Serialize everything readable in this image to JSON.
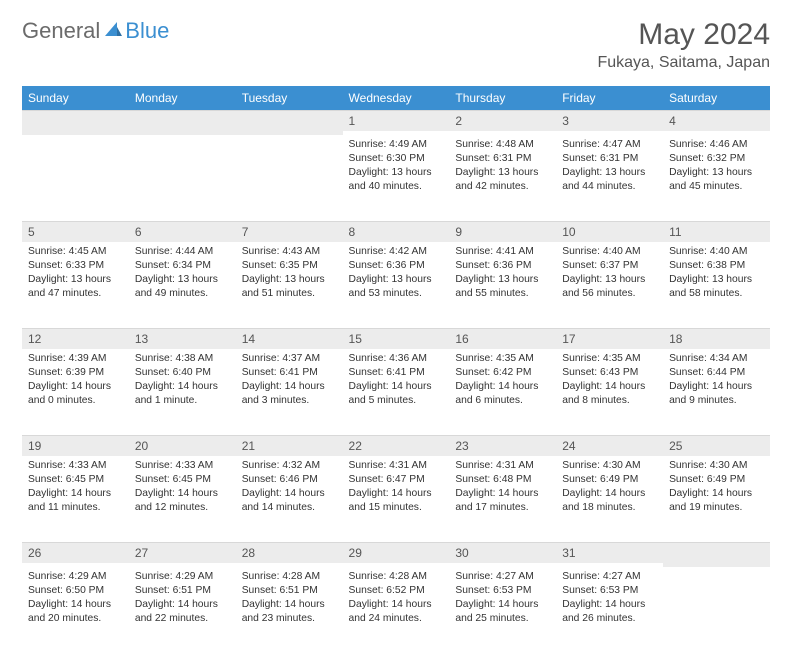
{
  "logo": {
    "text_general": "General",
    "text_blue": "Blue"
  },
  "title": "May 2024",
  "location": "Fukaya, Saitama, Japan",
  "header_bg": "#3b8fd1",
  "daynum_bg": "#ececec",
  "weekdays": [
    "Sunday",
    "Monday",
    "Tuesday",
    "Wednesday",
    "Thursday",
    "Friday",
    "Saturday"
  ],
  "weeks": [
    [
      null,
      null,
      null,
      {
        "n": "1",
        "sunrise": "4:49 AM",
        "sunset": "6:30 PM",
        "daylight": "13 hours and 40 minutes."
      },
      {
        "n": "2",
        "sunrise": "4:48 AM",
        "sunset": "6:31 PM",
        "daylight": "13 hours and 42 minutes."
      },
      {
        "n": "3",
        "sunrise": "4:47 AM",
        "sunset": "6:31 PM",
        "daylight": "13 hours and 44 minutes."
      },
      {
        "n": "4",
        "sunrise": "4:46 AM",
        "sunset": "6:32 PM",
        "daylight": "13 hours and 45 minutes."
      }
    ],
    [
      {
        "n": "5",
        "sunrise": "4:45 AM",
        "sunset": "6:33 PM",
        "daylight": "13 hours and 47 minutes."
      },
      {
        "n": "6",
        "sunrise": "4:44 AM",
        "sunset": "6:34 PM",
        "daylight": "13 hours and 49 minutes."
      },
      {
        "n": "7",
        "sunrise": "4:43 AM",
        "sunset": "6:35 PM",
        "daylight": "13 hours and 51 minutes."
      },
      {
        "n": "8",
        "sunrise": "4:42 AM",
        "sunset": "6:36 PM",
        "daylight": "13 hours and 53 minutes."
      },
      {
        "n": "9",
        "sunrise": "4:41 AM",
        "sunset": "6:36 PM",
        "daylight": "13 hours and 55 minutes."
      },
      {
        "n": "10",
        "sunrise": "4:40 AM",
        "sunset": "6:37 PM",
        "daylight": "13 hours and 56 minutes."
      },
      {
        "n": "11",
        "sunrise": "4:40 AM",
        "sunset": "6:38 PM",
        "daylight": "13 hours and 58 minutes."
      }
    ],
    [
      {
        "n": "12",
        "sunrise": "4:39 AM",
        "sunset": "6:39 PM",
        "daylight": "14 hours and 0 minutes."
      },
      {
        "n": "13",
        "sunrise": "4:38 AM",
        "sunset": "6:40 PM",
        "daylight": "14 hours and 1 minute."
      },
      {
        "n": "14",
        "sunrise": "4:37 AM",
        "sunset": "6:41 PM",
        "daylight": "14 hours and 3 minutes."
      },
      {
        "n": "15",
        "sunrise": "4:36 AM",
        "sunset": "6:41 PM",
        "daylight": "14 hours and 5 minutes."
      },
      {
        "n": "16",
        "sunrise": "4:35 AM",
        "sunset": "6:42 PM",
        "daylight": "14 hours and 6 minutes."
      },
      {
        "n": "17",
        "sunrise": "4:35 AM",
        "sunset": "6:43 PM",
        "daylight": "14 hours and 8 minutes."
      },
      {
        "n": "18",
        "sunrise": "4:34 AM",
        "sunset": "6:44 PM",
        "daylight": "14 hours and 9 minutes."
      }
    ],
    [
      {
        "n": "19",
        "sunrise": "4:33 AM",
        "sunset": "6:45 PM",
        "daylight": "14 hours and 11 minutes."
      },
      {
        "n": "20",
        "sunrise": "4:33 AM",
        "sunset": "6:45 PM",
        "daylight": "14 hours and 12 minutes."
      },
      {
        "n": "21",
        "sunrise": "4:32 AM",
        "sunset": "6:46 PM",
        "daylight": "14 hours and 14 minutes."
      },
      {
        "n": "22",
        "sunrise": "4:31 AM",
        "sunset": "6:47 PM",
        "daylight": "14 hours and 15 minutes."
      },
      {
        "n": "23",
        "sunrise": "4:31 AM",
        "sunset": "6:48 PM",
        "daylight": "14 hours and 17 minutes."
      },
      {
        "n": "24",
        "sunrise": "4:30 AM",
        "sunset": "6:49 PM",
        "daylight": "14 hours and 18 minutes."
      },
      {
        "n": "25",
        "sunrise": "4:30 AM",
        "sunset": "6:49 PM",
        "daylight": "14 hours and 19 minutes."
      }
    ],
    [
      {
        "n": "26",
        "sunrise": "4:29 AM",
        "sunset": "6:50 PM",
        "daylight": "14 hours and 20 minutes."
      },
      {
        "n": "27",
        "sunrise": "4:29 AM",
        "sunset": "6:51 PM",
        "daylight": "14 hours and 22 minutes."
      },
      {
        "n": "28",
        "sunrise": "4:28 AM",
        "sunset": "6:51 PM",
        "daylight": "14 hours and 23 minutes."
      },
      {
        "n": "29",
        "sunrise": "4:28 AM",
        "sunset": "6:52 PM",
        "daylight": "14 hours and 24 minutes."
      },
      {
        "n": "30",
        "sunrise": "4:27 AM",
        "sunset": "6:53 PM",
        "daylight": "14 hours and 25 minutes."
      },
      {
        "n": "31",
        "sunrise": "4:27 AM",
        "sunset": "6:53 PM",
        "daylight": "14 hours and 26 minutes."
      },
      null
    ]
  ]
}
